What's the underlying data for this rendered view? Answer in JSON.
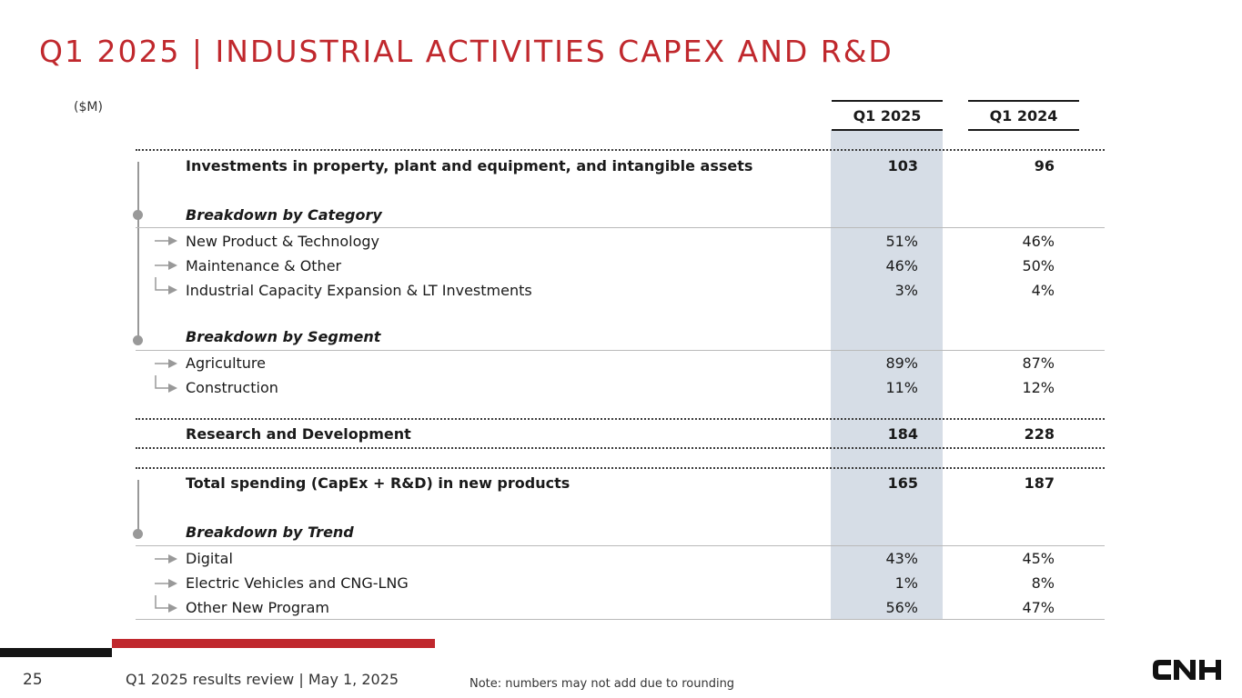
{
  "title": "Q1 2025 | INDUSTRIAL ACTIVITIES CAPEX AND R&D",
  "unit": "($M)",
  "columns": [
    "Q1 2025",
    "Q1 2024"
  ],
  "capex": {
    "label": "Investments in property, plant and equipment, and intangible assets",
    "q1_2025": "103",
    "q1_2024": "96",
    "category_header": "Breakdown by Category",
    "categories": [
      {
        "label": "New Product & Technology",
        "q1_2025": "51%",
        "q1_2024": "46%"
      },
      {
        "label": "Maintenance & Other",
        "q1_2025": "46%",
        "q1_2024": "50%"
      },
      {
        "label": "Industrial Capacity Expansion & LT Investments",
        "q1_2025": "3%",
        "q1_2024": "4%"
      }
    ],
    "segment_header": "Breakdown by Segment",
    "segments": [
      {
        "label": "Agriculture",
        "q1_2025": "89%",
        "q1_2024": "87%"
      },
      {
        "label": "Construction",
        "q1_2025": "11%",
        "q1_2024": "12%"
      }
    ]
  },
  "rnd": {
    "label": "Research and Development",
    "q1_2025": "184",
    "q1_2024": "228"
  },
  "total": {
    "label": "Total spending (CapEx + R&D) in new products",
    "q1_2025": "165",
    "q1_2024": "187",
    "trend_header": "Breakdown by Trend",
    "trends": [
      {
        "label": "Digital",
        "q1_2025": "43%",
        "q1_2024": "45%"
      },
      {
        "label": "Electric Vehicles and CNG-LNG",
        "q1_2025": "1%",
        "q1_2024": "8%"
      },
      {
        "label": "Other New Program",
        "q1_2025": "56%",
        "q1_2024": "47%"
      }
    ]
  },
  "footer": {
    "page_number": "25",
    "text": "Q1 2025 results review | May 1, 2025",
    "note": "Note: numbers may not add due to rounding"
  },
  "logo": {
    "text": "CNH",
    "icon": "cnh-logo"
  },
  "colors": {
    "accent": "#c0282d",
    "highlight_column": "#d6dde6",
    "text": "#1a1a1a"
  }
}
